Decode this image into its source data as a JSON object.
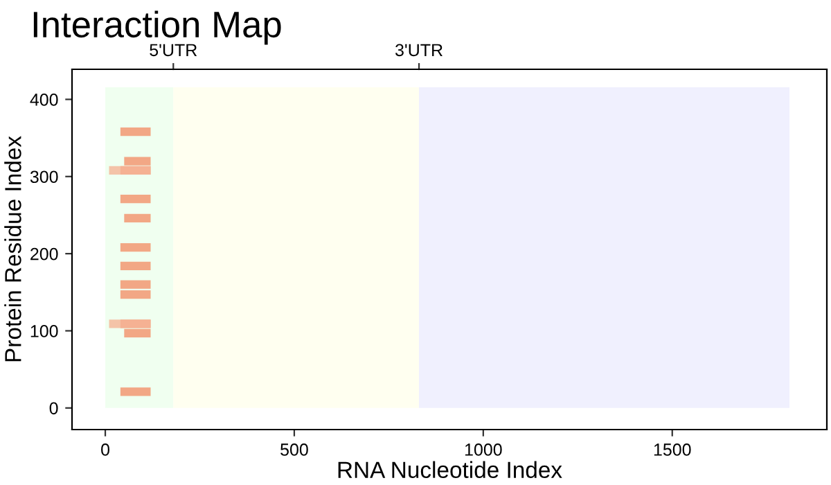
{
  "chart_data": {
    "type": "bar",
    "orientation": "horizontal",
    "title": "Interaction Map",
    "xlabel": "RNA Nucleotide Index",
    "ylabel": "Protein Residue Index",
    "series": [
      {
        "color": "#f2916a",
        "x": [
          21,
          97,
          109,
          147,
          160,
          184,
          208,
          246,
          271,
          308,
          320,
          358
        ],
        "base": [
          40,
          50,
          40,
          40,
          40,
          40,
          40,
          50,
          40,
          40,
          50,
          40
        ],
        "values": [
          80,
          70,
          80,
          80,
          80,
          80,
          80,
          70,
          80,
          80,
          70,
          80
        ]
      },
      {
        "color": "#f5b496",
        "x": [
          109,
          308
        ],
        "base": [
          10,
          10
        ],
        "values": [
          110,
          110
        ]
      }
    ],
    "xlim": [
      -88,
      1909
    ],
    "xticks": [
      0,
      500,
      1000,
      1500
    ],
    "ylim": [
      -28,
      439
    ],
    "yticks": [
      0,
      100,
      200,
      300,
      400
    ],
    "bands": [
      {
        "axis": "x",
        "from": 0,
        "to": 180,
        "color": "#f0fff0",
        "label": "5'UTR"
      },
      {
        "axis": "x",
        "from": 180,
        "to": 830,
        "color": "#fffff0"
      },
      {
        "axis": "x",
        "from": 830,
        "to": 1810,
        "color": "#f0f0fe",
        "label": "3'UTR"
      }
    ],
    "grid": false
  }
}
